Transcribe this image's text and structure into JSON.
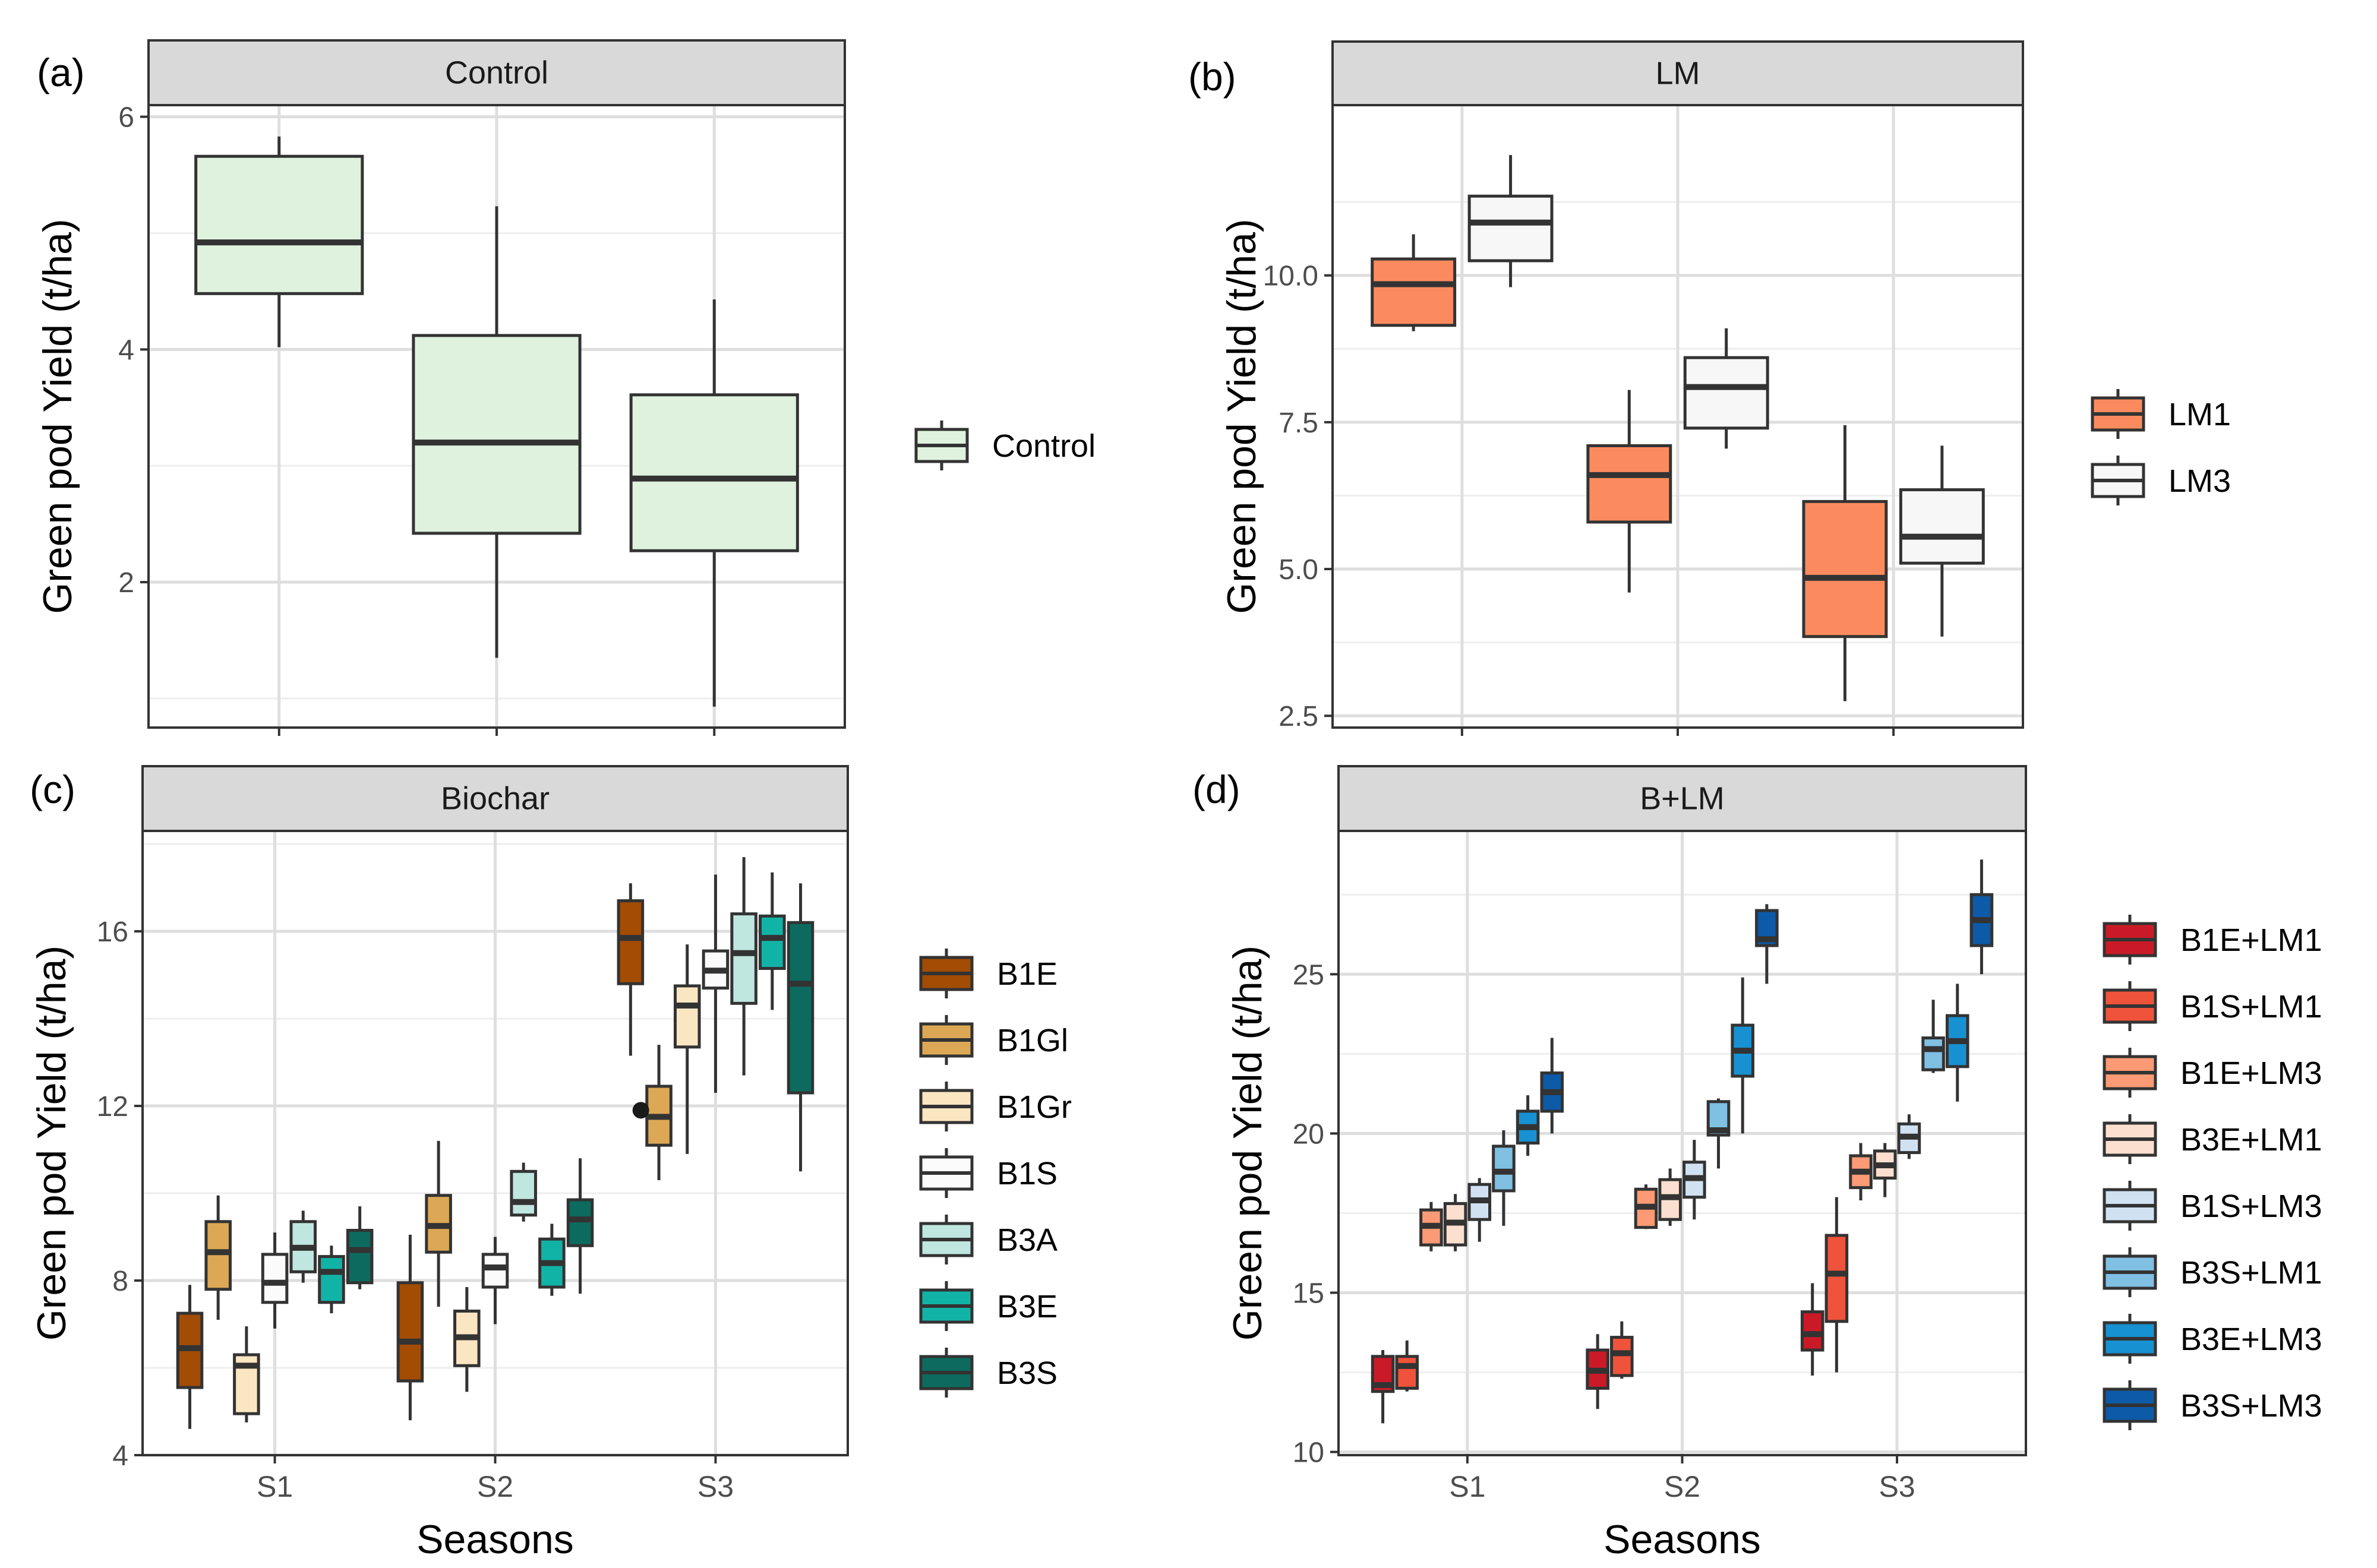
{
  "figure": {
    "xlabel": "Seasons",
    "ylabel": "Green pod Yield (t/ha)"
  },
  "chart_data": [
    {
      "type": "box",
      "panel_label": "(a)",
      "title": "Control",
      "xlabel": "",
      "ylabel": "Green pod Yield (t/ha)",
      "categories": [
        "S1",
        "S2",
        "S3"
      ],
      "show_x_tick_labels": false,
      "ylim": [
        0.75,
        6.1
      ],
      "yticks": [
        2,
        4,
        6
      ],
      "ytick_labels": [
        "2",
        "4",
        "6"
      ],
      "legend": [
        "Control"
      ],
      "series": [
        {
          "name": "Control",
          "color": "#dff2de",
          "boxes": [
            {
              "category": "S1",
              "min": 4.02,
              "q1": 4.48,
              "median": 4.92,
              "q3": 5.66,
              "max": 5.83
            },
            {
              "category": "S2",
              "min": 1.35,
              "q1": 2.42,
              "median": 3.2,
              "q3": 4.12,
              "max": 5.23
            },
            {
              "category": "S3",
              "min": 0.93,
              "q1": 2.27,
              "median": 2.89,
              "q3": 3.61,
              "max": 4.43
            }
          ]
        }
      ]
    },
    {
      "type": "box",
      "panel_label": "(b)",
      "title": "LM",
      "xlabel": "",
      "ylabel": "Green pod Yield (t/ha)",
      "categories": [
        "S1",
        "S2",
        "S3"
      ],
      "show_x_tick_labels": false,
      "ylim": [
        2.3,
        12.9
      ],
      "yticks": [
        2.5,
        5.0,
        7.5,
        10.0
      ],
      "ytick_labels": [
        "2.5",
        "5.0",
        "7.5",
        "10.0"
      ],
      "legend": [
        "LM1",
        "LM3"
      ],
      "series": [
        {
          "name": "LM1",
          "color": "#fb8b5e",
          "boxes": [
            {
              "category": "S1",
              "min": 9.05,
              "q1": 9.15,
              "median": 9.85,
              "q3": 10.28,
              "max": 10.7
            },
            {
              "category": "S2",
              "min": 4.6,
              "q1": 5.8,
              "median": 6.6,
              "q3": 7.1,
              "max": 8.05
            },
            {
              "category": "S3",
              "min": 2.75,
              "q1": 3.85,
              "median": 4.85,
              "q3": 6.15,
              "max": 7.45
            }
          ]
        },
        {
          "name": "LM3",
          "color": "#f7f7f7",
          "boxes": [
            {
              "category": "S1",
              "min": 9.8,
              "q1": 10.25,
              "median": 10.9,
              "q3": 11.35,
              "max": 12.05
            },
            {
              "category": "S2",
              "min": 7.05,
              "q1": 7.4,
              "median": 8.1,
              "q3": 8.6,
              "max": 9.1
            },
            {
              "category": "S3",
              "min": 3.85,
              "q1": 5.1,
              "median": 5.55,
              "q3": 6.35,
              "max": 7.1
            }
          ]
        }
      ]
    },
    {
      "type": "box",
      "panel_label": "(c)",
      "title": "Biochar",
      "xlabel": "Seasons",
      "ylabel": "Green pod Yield (t/ha)",
      "categories": [
        "S1",
        "S2",
        "S3"
      ],
      "show_x_tick_labels": true,
      "ylim": [
        4.0,
        18.3
      ],
      "yticks": [
        4,
        8,
        12,
        16
      ],
      "ytick_labels": [
        "4",
        "8",
        "12",
        "16"
      ],
      "legend": [
        "B1E",
        "B1Gl",
        "B1Gr",
        "B1S",
        "B3A",
        "B3E",
        "B3S"
      ],
      "series": [
        {
          "name": "B1E",
          "color": "#a24c04",
          "boxes": [
            {
              "category": "S1",
              "min": 4.6,
              "q1": 5.55,
              "median": 6.45,
              "q3": 7.25,
              "max": 7.9
            },
            {
              "category": "S2",
              "min": 4.8,
              "q1": 5.7,
              "median": 6.6,
              "q3": 7.95,
              "max": 9.05
            },
            {
              "category": "S3",
              "min": 13.15,
              "q1": 14.8,
              "median": 15.85,
              "q3": 16.7,
              "max": 17.1
            }
          ]
        },
        {
          "name": "B1Gl",
          "color": "#dca855",
          "boxes": [
            {
              "category": "S1",
              "min": 7.1,
              "q1": 7.8,
              "median": 8.65,
              "q3": 9.35,
              "max": 9.95
            },
            {
              "category": "S2",
              "min": 7.4,
              "q1": 8.65,
              "median": 9.25,
              "q3": 9.95,
              "max": 11.2
            },
            {
              "category": "S3",
              "min": 10.3,
              "q1": 11.1,
              "median": 11.75,
              "q3": 12.45,
              "max": 13.4,
              "outliers": [
                11.9
              ]
            }
          ]
        },
        {
          "name": "B1Gr",
          "color": "#fae6c1",
          "boxes": [
            {
              "category": "S1",
              "min": 4.75,
              "q1": 4.95,
              "median": 6.05,
              "q3": 6.3,
              "max": 6.95
            },
            {
              "category": "S2",
              "min": 5.45,
              "q1": 6.05,
              "median": 6.7,
              "q3": 7.3,
              "max": 7.85
            },
            {
              "category": "S3",
              "min": 10.9,
              "q1": 13.35,
              "median": 14.3,
              "q3": 14.75,
              "max": 15.7
            }
          ]
        },
        {
          "name": "B1S",
          "color": "#fbfbfb",
          "boxes": [
            {
              "category": "S1",
              "min": 6.9,
              "q1": 7.5,
              "median": 7.95,
              "q3": 8.6,
              "max": 9.1
            },
            {
              "category": "S2",
              "min": 7.0,
              "q1": 7.85,
              "median": 8.3,
              "q3": 8.6,
              "max": 9.0
            },
            {
              "category": "S3",
              "min": 12.3,
              "q1": 14.7,
              "median": 15.1,
              "q3": 15.55,
              "max": 17.3
            }
          ]
        },
        {
          "name": "B3A",
          "color": "#bfe6df",
          "boxes": [
            {
              "category": "S1",
              "min": 7.95,
              "q1": 8.2,
              "median": 8.75,
              "q3": 9.35,
              "max": 9.6
            },
            {
              "category": "S2",
              "min": 9.35,
              "q1": 9.5,
              "median": 9.8,
              "q3": 10.5,
              "max": 10.7
            },
            {
              "category": "S3",
              "min": 12.7,
              "q1": 14.35,
              "median": 15.5,
              "q3": 16.4,
              "max": 17.7
            }
          ]
        },
        {
          "name": "B3E",
          "color": "#12b3a7",
          "boxes": [
            {
              "category": "S1",
              "min": 7.25,
              "q1": 7.5,
              "median": 8.2,
              "q3": 8.55,
              "max": 8.8
            },
            {
              "category": "S2",
              "min": 7.65,
              "q1": 7.85,
              "median": 8.4,
              "q3": 8.95,
              "max": 9.3
            },
            {
              "category": "S3",
              "min": 14.2,
              "q1": 15.15,
              "median": 15.85,
              "q3": 16.35,
              "max": 17.35
            }
          ]
        },
        {
          "name": "B3S",
          "color": "#0c6b5e",
          "boxes": [
            {
              "category": "S1",
              "min": 7.8,
              "q1": 7.95,
              "median": 8.7,
              "q3": 9.15,
              "max": 9.7
            },
            {
              "category": "S2",
              "min": 7.7,
              "q1": 8.8,
              "median": 9.4,
              "q3": 9.85,
              "max": 10.8
            },
            {
              "category": "S3",
              "min": 10.5,
              "q1": 12.3,
              "median": 14.8,
              "q3": 16.2,
              "max": 17.1
            }
          ]
        }
      ]
    },
    {
      "type": "box",
      "panel_label": "(d)",
      "title": "B+LM",
      "xlabel": "Seasons",
      "ylabel": "Green pod Yield (t/ha)",
      "categories": [
        "S1",
        "S2",
        "S3"
      ],
      "show_x_tick_labels": true,
      "ylim": [
        9.9,
        29.5
      ],
      "yticks": [
        10,
        15,
        20,
        25
      ],
      "ytick_labels": [
        "10",
        "15",
        "20",
        "25"
      ],
      "legend": [
        "B1E+LM1",
        "B1S+LM1",
        "B1E+LM3",
        "B3E+LM1",
        "B1S+LM3",
        "B3S+LM1",
        "B3E+LM3",
        "B3S+LM3"
      ],
      "series": [
        {
          "name": "B1E+LM1",
          "color": "#cb1a27",
          "boxes": [
            {
              "category": "S1",
              "min": 10.9,
              "q1": 11.9,
              "median": 12.1,
              "q3": 13.0,
              "max": 13.2
            },
            {
              "category": "S2",
              "min": 11.35,
              "q1": 12.0,
              "median": 12.55,
              "q3": 13.2,
              "max": 13.7
            },
            {
              "category": "S3",
              "min": 12.4,
              "q1": 13.2,
              "median": 13.7,
              "q3": 14.4,
              "max": 15.3
            }
          ]
        },
        {
          "name": "B1S+LM1",
          "color": "#f0533b",
          "boxes": [
            {
              "category": "S1",
              "min": 11.9,
              "q1": 12.0,
              "median": 12.7,
              "q3": 13.0,
              "max": 13.5
            },
            {
              "category": "S2",
              "min": 12.3,
              "q1": 12.4,
              "median": 13.1,
              "q3": 13.6,
              "max": 14.1
            },
            {
              "category": "S3",
              "min": 12.5,
              "q1": 14.1,
              "median": 15.6,
              "q3": 16.8,
              "max": 18.0
            }
          ]
        },
        {
          "name": "B1E+LM3",
          "color": "#fb9a74",
          "boxes": [
            {
              "category": "S1",
              "min": 16.3,
              "q1": 16.5,
              "median": 17.1,
              "q3": 17.6,
              "max": 17.85
            },
            {
              "category": "S2",
              "min": 17.0,
              "q1": 17.05,
              "median": 17.7,
              "q3": 18.25,
              "max": 18.4
            },
            {
              "category": "S3",
              "min": 17.9,
              "q1": 18.3,
              "median": 18.8,
              "q3": 19.3,
              "max": 19.7
            }
          ]
        },
        {
          "name": "B3E+LM1",
          "color": "#fcdfcf",
          "boxes": [
            {
              "category": "S1",
              "min": 16.3,
              "q1": 16.5,
              "median": 17.2,
              "q3": 17.8,
              "max": 18.1
            },
            {
              "category": "S2",
              "min": 17.1,
              "q1": 17.3,
              "median": 18.0,
              "q3": 18.55,
              "max": 18.9
            },
            {
              "category": "S3",
              "min": 18.0,
              "q1": 18.6,
              "median": 19.0,
              "q3": 19.45,
              "max": 19.7
            }
          ]
        },
        {
          "name": "B1S+LM3",
          "color": "#d0e1f2",
          "boxes": [
            {
              "category": "S1",
              "min": 16.6,
              "q1": 17.3,
              "median": 17.9,
              "q3": 18.4,
              "max": 18.6
            },
            {
              "category": "S2",
              "min": 17.3,
              "q1": 18.0,
              "median": 18.6,
              "q3": 19.1,
              "max": 19.8
            },
            {
              "category": "S3",
              "min": 19.2,
              "q1": 19.4,
              "median": 19.9,
              "q3": 20.3,
              "max": 20.6
            }
          ]
        },
        {
          "name": "B3S+LM1",
          "color": "#7fc0e3",
          "boxes": [
            {
              "category": "S1",
              "min": 17.1,
              "q1": 18.2,
              "median": 18.8,
              "q3": 19.6,
              "max": 20.1
            },
            {
              "category": "S2",
              "min": 18.9,
              "q1": 19.95,
              "median": 20.1,
              "q3": 21.0,
              "max": 21.1
            },
            {
              "category": "S3",
              "min": 21.9,
              "q1": 22.0,
              "median": 22.65,
              "q3": 23.0,
              "max": 24.2
            }
          ]
        },
        {
          "name": "B3E+LM3",
          "color": "#1791d1",
          "boxes": [
            {
              "category": "S1",
              "min": 19.3,
              "q1": 19.7,
              "median": 20.2,
              "q3": 20.7,
              "max": 21.2
            },
            {
              "category": "S2",
              "min": 20.0,
              "q1": 21.8,
              "median": 22.6,
              "q3": 23.4,
              "max": 24.9
            },
            {
              "category": "S3",
              "min": 21.0,
              "q1": 22.1,
              "median": 22.9,
              "q3": 23.7,
              "max": 24.7
            }
          ]
        },
        {
          "name": "B3S+LM3",
          "color": "#0c5aa8",
          "boxes": [
            {
              "category": "S1",
              "min": 20.0,
              "q1": 20.7,
              "median": 21.3,
              "q3": 21.9,
              "max": 23.0
            },
            {
              "category": "S2",
              "min": 24.7,
              "q1": 25.9,
              "median": 26.1,
              "q3": 27.0,
              "max": 27.2
            },
            {
              "category": "S3",
              "min": 25.0,
              "q1": 25.9,
              "median": 26.7,
              "q3": 27.5,
              "max": 28.6
            }
          ]
        }
      ]
    }
  ]
}
